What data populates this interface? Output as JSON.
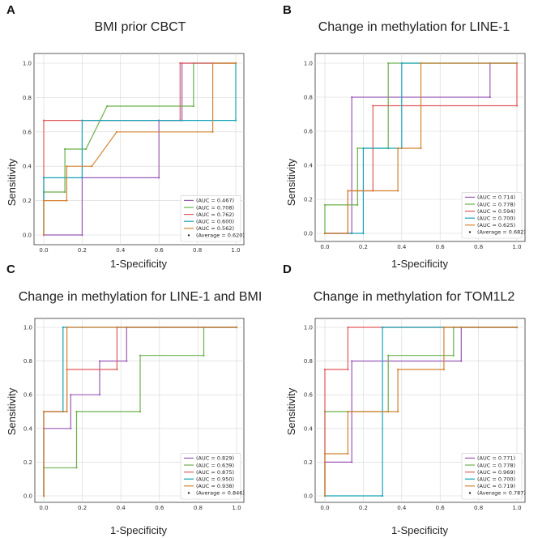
{
  "chart_data": [
    {
      "letter": "A",
      "type": "line",
      "title": "BMI prior CBCT",
      "xlabel": "1-Specificity",
      "ylabel": "Sensitivity",
      "xlim": [
        0,
        1
      ],
      "ylim": [
        0,
        1
      ],
      "xticks": [
        "0.0",
        "0.2",
        "0.4",
        "0.6",
        "0.8",
        "1.0"
      ],
      "yticks": [
        "0.0",
        "0.2",
        "0.4",
        "0.6",
        "0.8",
        "1.0"
      ],
      "grid": true,
      "legend_position": "bottom-right",
      "average_label": "(Average = 0.620)",
      "series": [
        {
          "name": "(AUC = 0.467)",
          "color": "#9b59b6",
          "points": [
            [
              0,
              0
            ],
            [
              0.2,
              0
            ],
            [
              0.2,
              0.333
            ],
            [
              0.6,
              0.333
            ],
            [
              0.6,
              0.667
            ],
            [
              0.72,
              0.667
            ],
            [
              0.72,
              1
            ],
            [
              1,
              1
            ]
          ]
        },
        {
          "name": "(AUC = 0.708)",
          "color": "#6ab04c",
          "points": [
            [
              0,
              0
            ],
            [
              0,
              0.25
            ],
            [
              0.11,
              0.25
            ],
            [
              0.11,
              0.5
            ],
            [
              0.22,
              0.5
            ],
            [
              0.33,
              0.75
            ],
            [
              0.78,
              0.75
            ],
            [
              0.78,
              1
            ],
            [
              1,
              1
            ]
          ]
        },
        {
          "name": "(AUC = 0.762)",
          "color": "#e05a5a",
          "points": [
            [
              0,
              0
            ],
            [
              0,
              0.667
            ],
            [
              0.71,
              0.667
            ],
            [
              0.71,
              1
            ],
            [
              1,
              1
            ]
          ]
        },
        {
          "name": "(AUC = 0.600)",
          "color": "#17a2b8",
          "points": [
            [
              0,
              0
            ],
            [
              0,
              0.333
            ],
            [
              0.2,
              0.333
            ],
            [
              0.2,
              0.667
            ],
            [
              1,
              0.667
            ],
            [
              1,
              1
            ]
          ]
        },
        {
          "name": "(AUC = 0.562)",
          "color": "#d4822f",
          "points": [
            [
              0,
              0
            ],
            [
              0,
              0.2
            ],
            [
              0.12,
              0.2
            ],
            [
              0.12,
              0.4
            ],
            [
              0.25,
              0.4
            ],
            [
              0.38,
              0.6
            ],
            [
              0.88,
              0.6
            ],
            [
              0.88,
              1
            ],
            [
              1,
              1
            ]
          ]
        }
      ]
    },
    {
      "letter": "B",
      "type": "line",
      "title": "Change in methylation for LINE-1",
      "xlabel": "1-Specificity",
      "ylabel": "Sensitivity",
      "xlim": [
        0,
        1
      ],
      "ylim": [
        0,
        1
      ],
      "xticks": [
        "0.0",
        "0.2",
        "0.4",
        "0.6",
        "0.8",
        "1.0"
      ],
      "yticks": [
        "0.0",
        "0.2",
        "0.4",
        "0.6",
        "0.8",
        "1.0"
      ],
      "grid": true,
      "legend_position": "bottom-right",
      "average_label": "(Average = 0.682)",
      "series": [
        {
          "name": "(AUC = 0.714)",
          "color": "#9b59b6",
          "points": [
            [
              0,
              0
            ],
            [
              0.14,
              0
            ],
            [
              0.14,
              0.8
            ],
            [
              0.86,
              0.8
            ],
            [
              0.86,
              1
            ],
            [
              1,
              1
            ]
          ]
        },
        {
          "name": "(AUC = 0.778)",
          "color": "#6ab04c",
          "points": [
            [
              0,
              0
            ],
            [
              0,
              0.167
            ],
            [
              0.17,
              0.167
            ],
            [
              0.17,
              0.5
            ],
            [
              0.33,
              0.5
            ],
            [
              0.33,
              1
            ],
            [
              1,
              1
            ]
          ]
        },
        {
          "name": "(AUC = 0.594)",
          "color": "#e05a5a",
          "points": [
            [
              0,
              0
            ],
            [
              0.12,
              0
            ],
            [
              0.12,
              0.25
            ],
            [
              0.25,
              0.25
            ],
            [
              0.25,
              0.75
            ],
            [
              1,
              0.75
            ],
            [
              1,
              1
            ]
          ]
        },
        {
          "name": "(AUC = 0.700)",
          "color": "#17a2b8",
          "points": [
            [
              0,
              0
            ],
            [
              0.2,
              0
            ],
            [
              0.2,
              0.5
            ],
            [
              0.4,
              0.5
            ],
            [
              0.4,
              1
            ],
            [
              1,
              1
            ]
          ]
        },
        {
          "name": "(AUC = 0.625)",
          "color": "#d4822f",
          "points": [
            [
              0,
              0
            ],
            [
              0.12,
              0
            ],
            [
              0.12,
              0.25
            ],
            [
              0.38,
              0.25
            ],
            [
              0.38,
              0.5
            ],
            [
              0.5,
              0.5
            ],
            [
              0.5,
              1
            ],
            [
              1,
              1
            ]
          ]
        }
      ]
    },
    {
      "letter": "C",
      "type": "line",
      "title": "Change in methylation for LINE-1 and BMI",
      "xlabel": "1-Specificity",
      "ylabel": "Sensitivity",
      "xlim": [
        0,
        1
      ],
      "ylim": [
        0,
        1
      ],
      "xticks": [
        "0.0",
        "0.2",
        "0.4",
        "0.6",
        "0.8",
        "1.0"
      ],
      "yticks": [
        "0.0",
        "0.2",
        "0.4",
        "0.6",
        "0.8",
        "1.0"
      ],
      "grid": true,
      "legend_position": "bottom-right",
      "average_label": "(Average = 0.846)",
      "series": [
        {
          "name": "(AUC = 0.829)",
          "color": "#9b59b6",
          "points": [
            [
              0,
              0
            ],
            [
              0,
              0.4
            ],
            [
              0.14,
              0.4
            ],
            [
              0.14,
              0.6
            ],
            [
              0.29,
              0.6
            ],
            [
              0.29,
              0.8
            ],
            [
              0.43,
              0.8
            ],
            [
              0.43,
              1
            ],
            [
              1,
              1
            ]
          ]
        },
        {
          "name": "(AUC = 0.639)",
          "color": "#6ab04c",
          "points": [
            [
              0,
              0
            ],
            [
              0,
              0.167
            ],
            [
              0.17,
              0.167
            ],
            [
              0.17,
              0.5
            ],
            [
              0.5,
              0.5
            ],
            [
              0.5,
              0.833
            ],
            [
              0.83,
              0.833
            ],
            [
              0.83,
              1
            ],
            [
              1,
              1
            ]
          ]
        },
        {
          "name": "(AUC = 0.875)",
          "color": "#e05a5a",
          "points": [
            [
              0,
              0
            ],
            [
              0,
              0.5
            ],
            [
              0.12,
              0.5
            ],
            [
              0.12,
              0.75
            ],
            [
              0.38,
              0.75
            ],
            [
              0.38,
              1
            ],
            [
              1,
              1
            ]
          ]
        },
        {
          "name": "(AUC = 0.950)",
          "color": "#17a2b8",
          "points": [
            [
              0,
              0
            ],
            [
              0,
              0.5
            ],
            [
              0.1,
              0.5
            ],
            [
              0.1,
              1
            ],
            [
              1,
              1
            ]
          ]
        },
        {
          "name": "(AUC = 0.938)",
          "color": "#d4822f",
          "points": [
            [
              0,
              0
            ],
            [
              0,
              0.5
            ],
            [
              0.12,
              0.5
            ],
            [
              0.12,
              1
            ],
            [
              1,
              1
            ]
          ]
        }
      ]
    },
    {
      "letter": "D",
      "type": "line",
      "title": "Change in methylation for TOM1L2",
      "xlabel": "1-Specificity",
      "ylabel": "Sensitivity",
      "xlim": [
        0,
        1
      ],
      "ylim": [
        0,
        1
      ],
      "xticks": [
        "0.0",
        "0.2",
        "0.4",
        "0.6",
        "0.8",
        "1.0"
      ],
      "yticks": [
        "0.0",
        "0.2",
        "0.4",
        "0.6",
        "0.8",
        "1.0"
      ],
      "grid": true,
      "legend_position": "bottom-right",
      "average_label": "(Average = 0.787)",
      "series": [
        {
          "name": "(AUC = 0.771)",
          "color": "#9b59b6",
          "points": [
            [
              0,
              0
            ],
            [
              0,
              0.2
            ],
            [
              0.14,
              0.2
            ],
            [
              0.14,
              0.8
            ],
            [
              0.71,
              0.8
            ],
            [
              0.71,
              1
            ],
            [
              1,
              1
            ]
          ]
        },
        {
          "name": "(AUC = 0.778)",
          "color": "#6ab04c",
          "points": [
            [
              0,
              0
            ],
            [
              0,
              0.5
            ],
            [
              0.33,
              0.5
            ],
            [
              0.33,
              0.833
            ],
            [
              0.67,
              0.833
            ],
            [
              0.67,
              1
            ],
            [
              1,
              1
            ]
          ]
        },
        {
          "name": "(AUC = 0.969)",
          "color": "#e05a5a",
          "points": [
            [
              0,
              0
            ],
            [
              0,
              0.75
            ],
            [
              0.12,
              0.75
            ],
            [
              0.12,
              1
            ],
            [
              1,
              1
            ]
          ]
        },
        {
          "name": "(AUC = 0.700)",
          "color": "#17a2b8",
          "points": [
            [
              0,
              0
            ],
            [
              0.3,
              0
            ],
            [
              0.3,
              1
            ],
            [
              1,
              1
            ]
          ]
        },
        {
          "name": "(AUC = 0.719)",
          "color": "#d4822f",
          "points": [
            [
              0,
              0
            ],
            [
              0,
              0.25
            ],
            [
              0.12,
              0.25
            ],
            [
              0.12,
              0.5
            ],
            [
              0.38,
              0.5
            ],
            [
              0.38,
              0.75
            ],
            [
              0.62,
              0.75
            ],
            [
              0.62,
              1
            ],
            [
              1,
              1
            ]
          ]
        }
      ]
    }
  ]
}
